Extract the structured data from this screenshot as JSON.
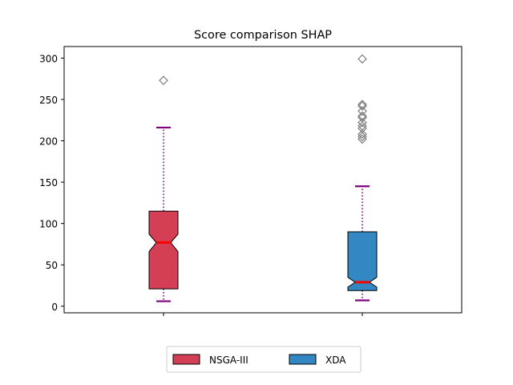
{
  "chart_data": {
    "type": "boxplot",
    "title": "Score comparison SHAP",
    "xlabel": "",
    "ylabel": "",
    "ylim": [
      -8,
      314
    ],
    "yticks": [
      0,
      50,
      100,
      150,
      200,
      250,
      300
    ],
    "notched": true,
    "legend": {
      "placement": "bottom-center",
      "columns": 2
    },
    "colors": {
      "whisker": "#800080",
      "median": "#ff0000",
      "flier": "#808080"
    },
    "series": [
      {
        "name": "NSGA-III",
        "color": "#d43f55",
        "whisker_low": 6,
        "q1": 21,
        "notch_low": 66,
        "median": 77,
        "notch_high": 87,
        "q3": 115,
        "whisker_high": 216,
        "outliers": [
          273
        ]
      },
      {
        "name": "XDA",
        "color": "#3388c3",
        "whisker_low": 7,
        "q1": 19,
        "notch_low": 23,
        "median": 29,
        "notch_high": 35,
        "q3": 90,
        "whisker_high": 145,
        "outliers": [
          202,
          205,
          208,
          215,
          218,
          222,
          228,
          230,
          236,
          242,
          244,
          299
        ]
      }
    ]
  }
}
